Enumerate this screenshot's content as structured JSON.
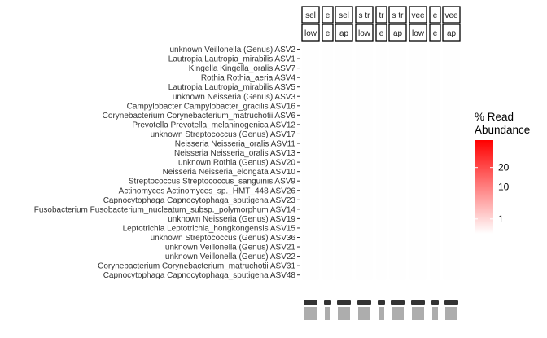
{
  "chart_data": {
    "type": "heatmap",
    "title": "",
    "xlabel": "",
    "ylabel": "",
    "rows": [
      "unknown Veillonella (Genus) ASV2",
      "Lautropia Lautropia_mirabilis ASV1",
      "Kingella Kingella_oralis ASV7",
      "Rothia Rothia_aeria ASV4",
      "Lautropia Lautropia_mirabilis ASV5",
      "unknown Neisseria (Genus) ASV3",
      "Campylobacter Campylobacter_gracilis ASV16",
      "Corynebacterium Corynebacterium_matruchotii ASV6",
      "Prevotella Prevotella_melaninogenica ASV12",
      "unknown Streptococcus (Genus) ASV17",
      "Neisseria Neisseria_oralis ASV11",
      "Neisseria Neisseria_oralis ASV13",
      "unknown Rothia (Genus) ASV20",
      "Neisseria Neisseria_elongata ASV10",
      "Streptococcus Streptococcus_sanguinis ASV9",
      "Actinomyces Actinomyces_sp._HMT_448 ASV26",
      "Capnocytophaga Capnocytophaga_sputigena ASV23",
      "Fusobacterium Fusobacterium_nucleatum_subsp._polymorphum ASV14",
      "unknown Neisseria (Genus) ASV19",
      "Leptotrichia Leptotrichia_hongkongensis ASV15",
      "unknown Streptococcus (Genus) ASV36",
      "unknown Veillonella (Genus) ASV21",
      "unknown Veillonella (Genus) ASV22",
      "Corynebacterium Corynebacterium_matruchotii ASV31",
      "Capnocytophaga Capnocytophaga_sputigena ASV48"
    ],
    "facets": [
      {
        "top": "sel",
        "bottom": "low"
      },
      {
        "top": "e",
        "bottom": "e"
      },
      {
        "top": "sel",
        "bottom": "ap"
      },
      {
        "top": "s tr",
        "bottom": "low"
      },
      {
        "top": "tr",
        "bottom": "e"
      },
      {
        "top": "s tr",
        "bottom": "ap"
      },
      {
        "top": "vee",
        "bottom": "low"
      },
      {
        "top": "e",
        "bottom": "e"
      },
      {
        "top": "vee",
        "bottom": "ap"
      }
    ],
    "x_tick_labels": [
      "",
      "",
      "",
      "",
      "",
      "",
      "",
      "",
      ""
    ],
    "values_note": "cells near-white (low abundance)",
    "values": [],
    "legend": {
      "title_line1": "% Read",
      "title_line2": "Abundance",
      "ticks": [
        1,
        10,
        20
      ],
      "scale": "sqrt",
      "max": 40,
      "color_low": "#ffffff",
      "color_high": "#ff0000"
    }
  }
}
